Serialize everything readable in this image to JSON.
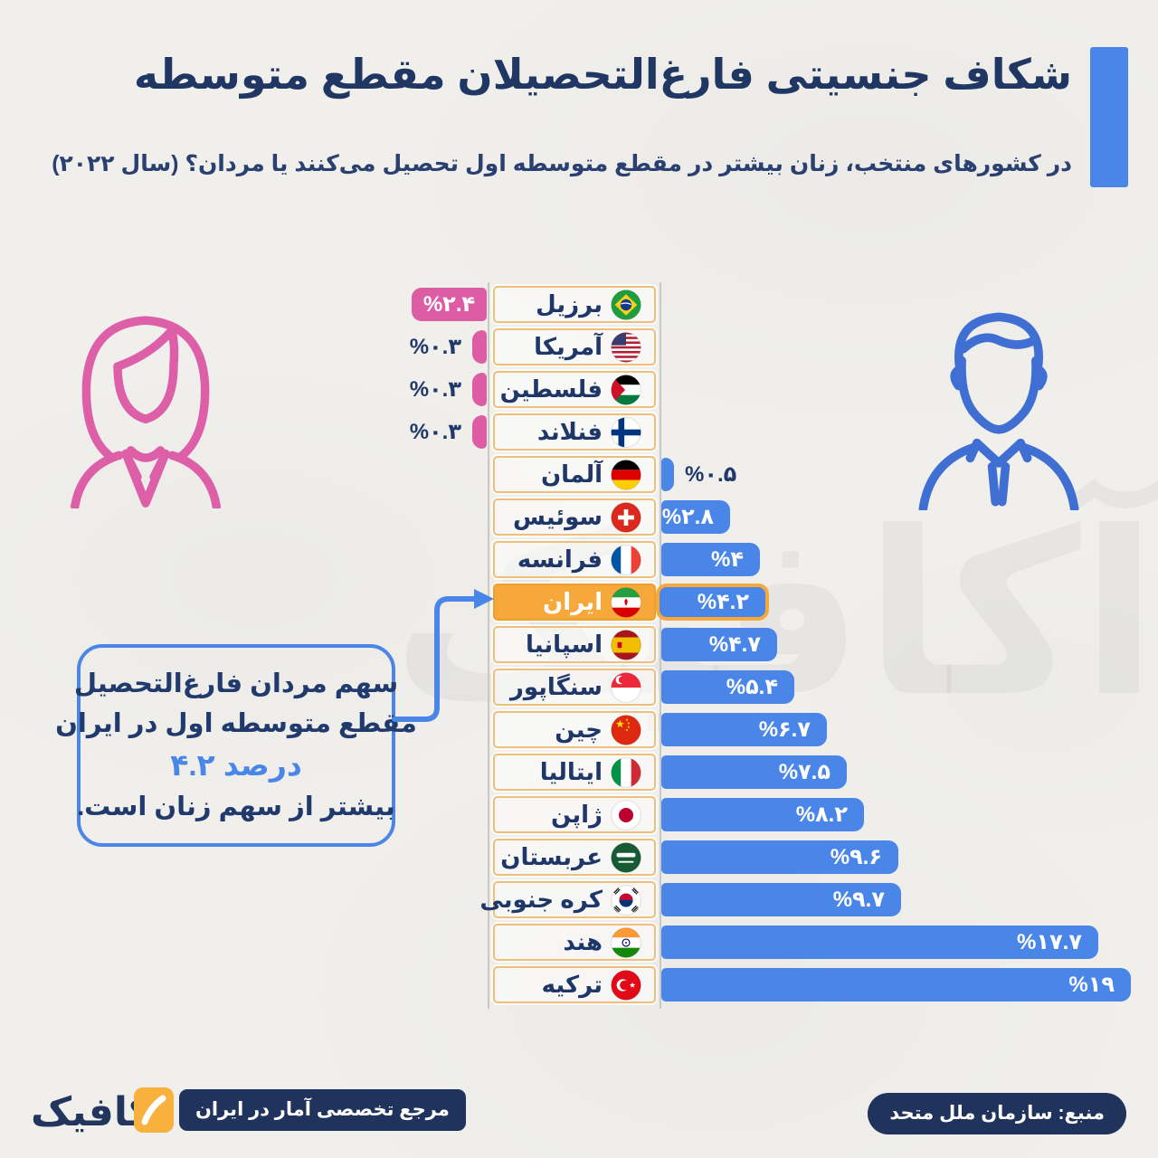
{
  "header": {
    "title": "شکاف جنسیتی فارغ‌التحصیلان مقطع متوسطه",
    "subtitle": "در کشورهای منتخب، زنان بیشتر در مقطع متوسطه اول تحصیل می‌کنند یا مردان؟ (سال ۲۰۲۲)"
  },
  "chart_data": {
    "type": "bar",
    "orientation": "horizontal-diverging",
    "unit": "percent",
    "year": "۲۰۲۲",
    "left_side_meaning": "women-higher (pink)",
    "right_side_meaning": "men-higher (blue)",
    "colors": {
      "women_bar": "#dd5da5",
      "men_bar": "#4a86e8",
      "highlight_box": "#f6a83a",
      "country_box_border": "#ecc07c",
      "text_navy": "#1e3768"
    },
    "rows": [
      {
        "country": "برزیل",
        "flag": "brazil",
        "side": "women",
        "value": 2.4,
        "label": "%۲.۴"
      },
      {
        "country": "آمریکا",
        "flag": "usa",
        "side": "women",
        "value": 0.3,
        "label": "%۰.۳"
      },
      {
        "country": "فلسطین",
        "flag": "palestine",
        "side": "women",
        "value": 0.3,
        "label": "%۰.۳"
      },
      {
        "country": "فنلاند",
        "flag": "finland",
        "side": "women",
        "value": 0.3,
        "label": "%۰.۳"
      },
      {
        "country": "آلمان",
        "flag": "germany",
        "side": "men",
        "value": 0.5,
        "label": "%۰.۵"
      },
      {
        "country": "سوئیس",
        "flag": "switzerland",
        "side": "men",
        "value": 2.8,
        "label": "%۲.۸"
      },
      {
        "country": "فرانسه",
        "flag": "france",
        "side": "men",
        "value": 4,
        "label": "%۴"
      },
      {
        "country": "ایران",
        "flag": "iran",
        "side": "men",
        "value": 4.2,
        "label": "%۴.۲",
        "highlighted": true
      },
      {
        "country": "اسپانیا",
        "flag": "spain",
        "side": "men",
        "value": 4.7,
        "label": "%۴.۷"
      },
      {
        "country": "سنگاپور",
        "flag": "singapore",
        "side": "men",
        "value": 5.4,
        "label": "%۵.۴"
      },
      {
        "country": "چین",
        "flag": "china",
        "side": "men",
        "value": 6.7,
        "label": "%۶.۷"
      },
      {
        "country": "ایتالیا",
        "flag": "italy",
        "side": "men",
        "value": 7.5,
        "label": "%۷.۵"
      },
      {
        "country": "ژاپن",
        "flag": "japan",
        "side": "men",
        "value": 8.2,
        "label": "%۸.۲"
      },
      {
        "country": "عربستان",
        "flag": "saudi-arabia",
        "side": "men",
        "value": 9.6,
        "label": "%۹.۶"
      },
      {
        "country": "کره جنوبی",
        "flag": "south-korea",
        "side": "men",
        "value": 9.7,
        "label": "%۹.۷"
      },
      {
        "country": "هند",
        "flag": "india",
        "side": "men",
        "value": 17.7,
        "label": "%۱۷.۷"
      },
      {
        "country": "ترکیه",
        "flag": "turkey",
        "side": "men",
        "value": 19,
        "label": "%۱۹"
      }
    ]
  },
  "callout": {
    "line1": "سهم مردان فارغ‌التحصیل",
    "line2": "مقطع متوسطه اول در ایران",
    "highlight": "۴.۲ درصد",
    "line3": "بیشتر از سهم زنان است."
  },
  "icons": {
    "woman": "woman-outline-icon",
    "man": "man-outline-icon",
    "woman_color": "#dc5fa8",
    "man_color": "#3f6fd3"
  },
  "footer": {
    "logo_text": "آکافیک",
    "tagline": "مرجع تخصصی آمار در ایران",
    "source": "منبع: سازمان ملل متحد"
  }
}
